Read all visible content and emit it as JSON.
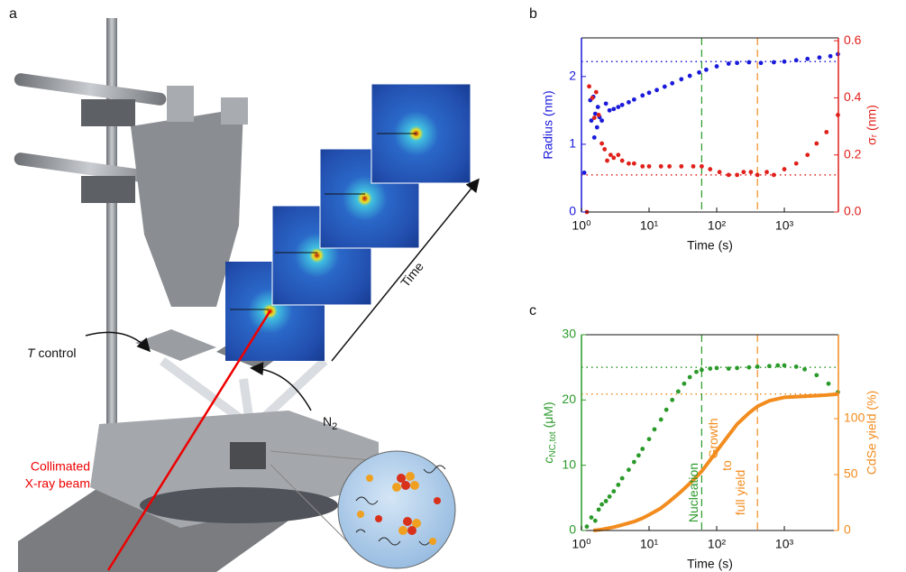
{
  "panels": {
    "a": "a"
  },
  "illustration": {
    "t_control": {
      "italic": "T",
      "rest": " control"
    },
    "n2": {
      "base": "N",
      "sub": "2"
    },
    "time": "Time",
    "beam": [
      "Collimated",
      "X-ray beam"
    ]
  },
  "chart_data": [
    {
      "type": "scatter",
      "panel": "b",
      "xlabel": "Time (s)",
      "xlog": true,
      "xlim": [
        1,
        6300
      ],
      "xticks": [
        {
          "value": 1,
          "label": "10⁰"
        },
        {
          "value": 10,
          "label": "10¹"
        },
        {
          "value": 100,
          "label": "10²"
        },
        {
          "value": 1000,
          "label": "10³"
        }
      ],
      "ylabel": "Radius (nm)",
      "ylim": [
        0,
        2.57
      ],
      "yticks": [
        0,
        1,
        2
      ],
      "y_color": "#1a1adb",
      "y2label": "σᵣ (nm)",
      "y2lim": [
        0,
        0.61
      ],
      "y2ticks": [
        {
          "value": 0,
          "label": "0.0"
        },
        0.2,
        0.4,
        0.6
      ],
      "y2_color": "#e0201b",
      "hlines": [
        {
          "value": 2.22,
          "axis": "y",
          "color": "#1a1adb"
        },
        {
          "value": 0.13,
          "axis": "y2",
          "color": "#e0201b"
        }
      ],
      "vlines": [
        {
          "value": 60,
          "color": "#2a9a2a"
        },
        {
          "value": 400,
          "color": "#f28c1e"
        }
      ],
      "series": [
        {
          "color": "#1a1adb",
          "mode": "points",
          "x": [
            1.1,
            1.35,
            1.4,
            1.5,
            1.55,
            1.6,
            1.7,
            1.75,
            1.85,
            2.0,
            2.3,
            2.6,
            3,
            3.5,
            4,
            5,
            6,
            8,
            10,
            13,
            17,
            22,
            30,
            40,
            55,
            70,
            100,
            150,
            200,
            300,
            450,
            700,
            1000,
            1500,
            2200,
            3300,
            4800,
            6200
          ],
          "values": [
            0.58,
            1.65,
            1.35,
            1.7,
            1.1,
            1.45,
            1.25,
            1.55,
            1.4,
            1.35,
            1.6,
            1.5,
            1.52,
            1.55,
            1.58,
            1.62,
            1.66,
            1.72,
            1.76,
            1.8,
            1.85,
            1.9,
            1.96,
            2.01,
            2.06,
            2.1,
            2.15,
            2.19,
            2.2,
            2.21,
            2.2,
            2.21,
            2.22,
            2.24,
            2.26,
            2.28,
            2.3,
            2.33
          ]
        },
        {
          "color": "#e0201b",
          "mode": "points",
          "axis": "y2",
          "x": [
            1.2,
            1.3,
            1.45,
            1.55,
            1.65,
            1.8,
            2.0,
            2.2,
            2.4,
            2.7,
            3,
            3.5,
            4,
            5,
            6,
            8,
            10,
            15,
            20,
            30,
            45,
            60,
            80,
            110,
            150,
            200,
            250,
            320,
            400,
            550,
            700,
            1000,
            1500,
            2200,
            3000,
            4200,
            6200
          ],
          "values": [
            0.0,
            0.44,
            0.4,
            0.33,
            0.42,
            0.34,
            0.24,
            0.22,
            0.18,
            0.2,
            0.19,
            0.2,
            0.18,
            0.17,
            0.17,
            0.16,
            0.16,
            0.16,
            0.16,
            0.16,
            0.16,
            0.16,
            0.15,
            0.14,
            0.13,
            0.13,
            0.14,
            0.14,
            0.13,
            0.14,
            0.13,
            0.15,
            0.17,
            0.2,
            0.24,
            0.28,
            0.34
          ]
        }
      ]
    },
    {
      "type": "scatter",
      "panel": "c",
      "xlabel": "Time (s)",
      "xlog": true,
      "xlim": [
        1,
        6300
      ],
      "xticks": [
        {
          "value": 1,
          "label": "10⁰"
        },
        {
          "value": 10,
          "label": "10¹"
        },
        {
          "value": 100,
          "label": "10²"
        },
        {
          "value": 1000,
          "label": "10³"
        }
      ],
      "ylabel": {
        "text": "c",
        "sub": "NC,tot",
        "tail": " (μM)"
      },
      "ylim": [
        0,
        30
      ],
      "yticks": [
        0,
        10,
        20,
        30
      ],
      "y_color": "#2a9a2a",
      "y2label": "CdSe yield (%)",
      "y2lim": [
        0,
        175
      ],
      "y2ticks": [
        0,
        50,
        100
      ],
      "y2_color": "#f28c1e",
      "hlines": [
        {
          "value": 25,
          "axis": "y",
          "color": "#2a9a2a"
        },
        {
          "value": 122,
          "axis": "y2",
          "color": "#f28c1e"
        }
      ],
      "vlines": [
        {
          "value": 60,
          "color": "#2a9a2a"
        },
        {
          "value": 400,
          "color": "#f28c1e"
        }
      ],
      "annotations": [
        {
          "lines": [
            "Nucleation"
          ],
          "color": "#2a9a2a"
        },
        {
          "lines": [
            "Growth",
            "to",
            "full yield"
          ],
          "color": "#f28c1e"
        }
      ],
      "series": [
        {
          "color": "#2a9a2a",
          "mode": "points",
          "x": [
            1.2,
            1.4,
            1.6,
            1.8,
            2,
            2.3,
            2.6,
            3,
            3.5,
            4,
            5,
            6,
            7,
            8,
            10,
            12,
            15,
            18,
            22,
            27,
            33,
            40,
            50,
            60,
            80,
            100,
            150,
            200,
            300,
            400,
            600,
            800,
            1000,
            1500,
            2000,
            3000,
            4500,
            6200
          ],
          "values": [
            0.6,
            2,
            1.5,
            3.2,
            4,
            4.5,
            5.2,
            6,
            7,
            8,
            9.3,
            10.5,
            11.5,
            12.5,
            14,
            15.5,
            17,
            18.5,
            20,
            21.3,
            22.5,
            23.5,
            24.3,
            24.6,
            24.8,
            24.9,
            24.8,
            24.9,
            25,
            25.1,
            25.2,
            25.3,
            25.3,
            25.1,
            24.7,
            23.8,
            22.5,
            21.2
          ]
        },
        {
          "color": "#f28c1e",
          "mode": "line",
          "axis": "y2",
          "x": [
            1.5,
            2,
            3,
            4,
            6,
            8,
            10,
            15,
            20,
            30,
            45,
            60,
            80,
            100,
            150,
            200,
            300,
            400,
            600,
            1000,
            2000,
            4000,
            6200
          ],
          "values": [
            0,
            1,
            3,
            5,
            8,
            11,
            14,
            20,
            26,
            35,
            45,
            53,
            63,
            71,
            85,
            95,
            105,
            111,
            116,
            119,
            120,
            121,
            122
          ]
        }
      ]
    }
  ]
}
